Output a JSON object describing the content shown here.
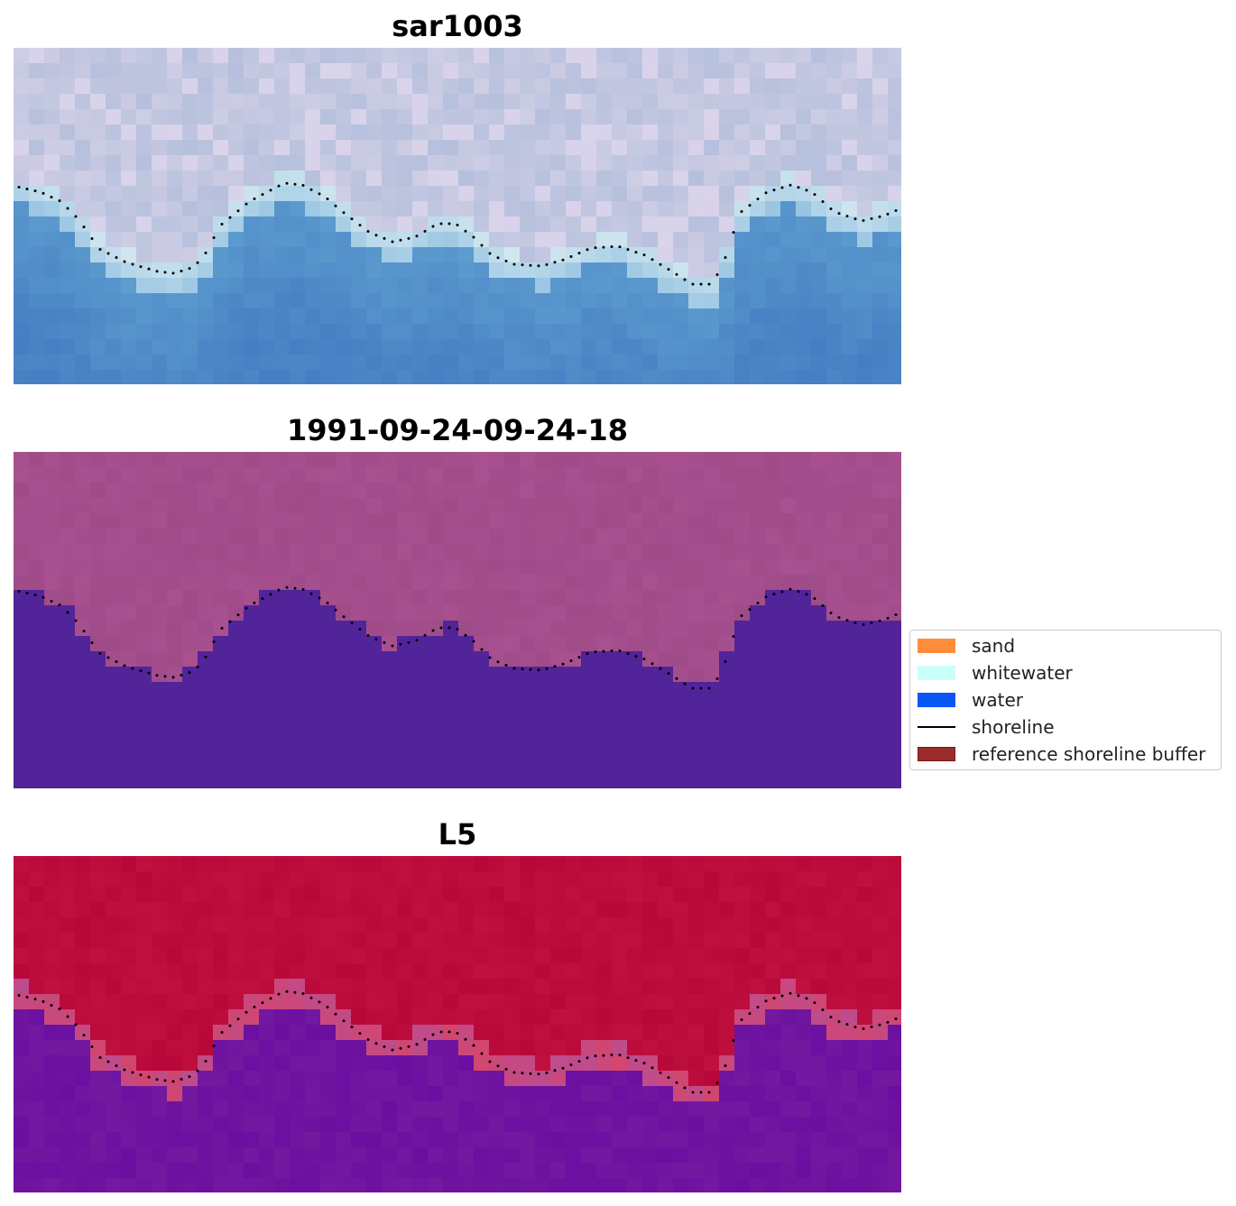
{
  "panels": [
    {
      "title": "sar1003",
      "style": "rgb"
    },
    {
      "title": "1991-09-24-09-24-18",
      "style": "class"
    },
    {
      "title": "L5",
      "style": "prob"
    }
  ],
  "legend": {
    "items": [
      {
        "label": "sand",
        "color": "#ff8c3a",
        "kind": "patch"
      },
      {
        "label": "whitewater",
        "color": "#c8fff8",
        "kind": "patch"
      },
      {
        "label": "water",
        "color": "#0a56f5",
        "kind": "patch"
      },
      {
        "label": "shoreline",
        "color": "#000000",
        "kind": "line"
      },
      {
        "label": "reference shoreline buffer",
        "color": "#9b2c2c",
        "kind": "patch"
      }
    ]
  },
  "colors": {
    "class_land": "#a85090",
    "class_water": "#52249a",
    "prob_land": "#b8083a",
    "prob_water": "#6a0fa0"
  }
}
